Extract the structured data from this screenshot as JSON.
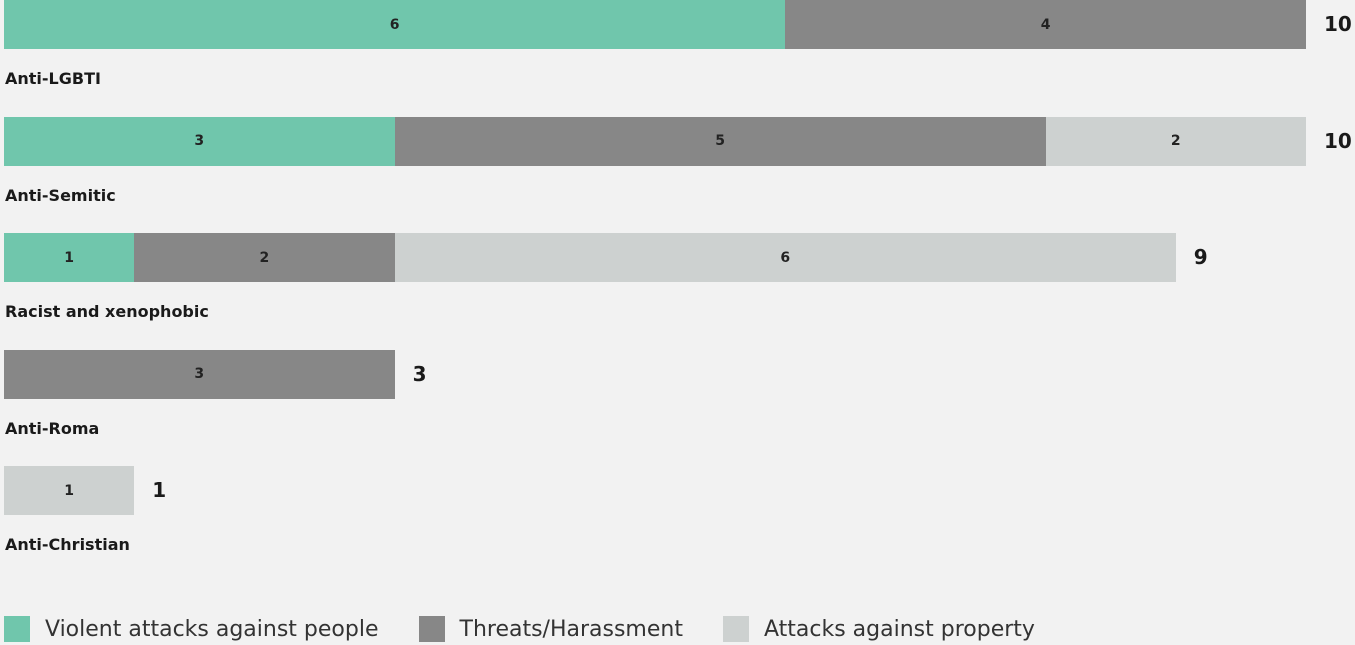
{
  "chart_data": {
    "type": "bar",
    "orientation": "horizontal",
    "stacked": true,
    "categories": [
      "Anti-LGBTI",
      "Anti-Semitic",
      "Racist and xenophobic",
      "Anti-Roma",
      "Anti-Christian"
    ],
    "series": [
      {
        "name": "Violent attacks against people",
        "color": "#70c6ac",
        "values": [
          6,
          3,
          1,
          0,
          0
        ]
      },
      {
        "name": "Threats/Harassment",
        "color": "#878787",
        "values": [
          4,
          5,
          2,
          3,
          0
        ]
      },
      {
        "name": "Attacks against property",
        "color": "#cdd1d0",
        "values": [
          0,
          2,
          6,
          0,
          1
        ]
      }
    ],
    "totals": [
      10,
      10,
      9,
      3,
      1
    ],
    "xlim": [
      0,
      10
    ],
    "legend_position": "bottom"
  }
}
